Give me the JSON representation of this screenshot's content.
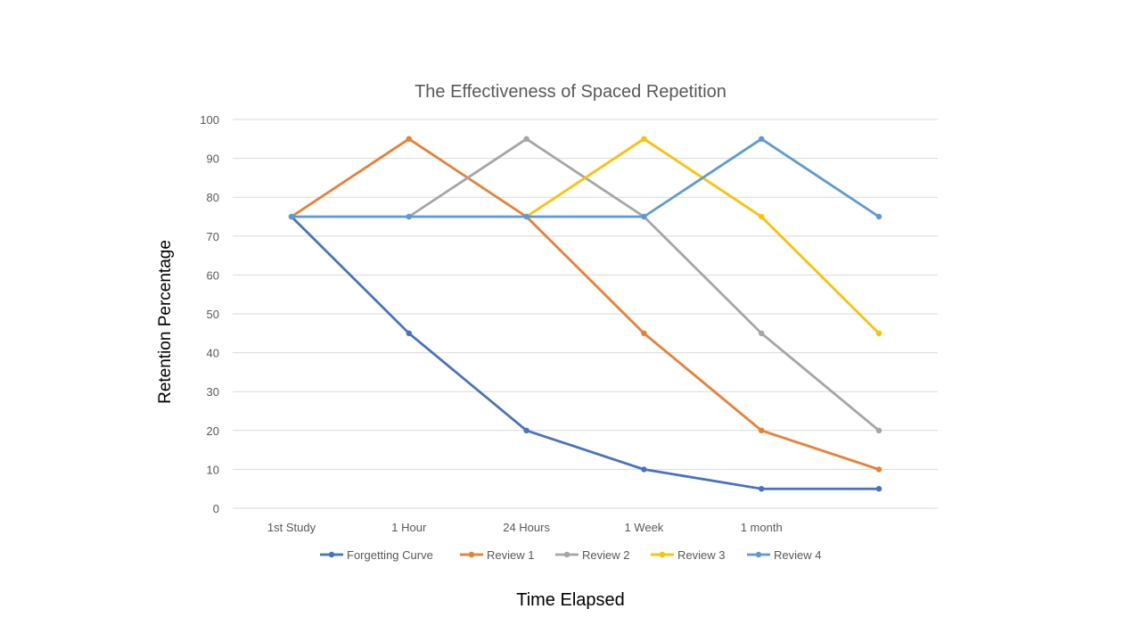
{
  "chart_data": {
    "type": "line",
    "title": "The Effectiveness of Spaced Repetition",
    "xlabel": "Time Elapsed",
    "ylabel": "Retention Percentage",
    "categories": [
      "1st Study",
      "1 Hour",
      "24 Hours",
      "1 Week",
      "1 month",
      ""
    ],
    "ylim": [
      0,
      100
    ],
    "yticks": [
      0,
      10,
      20,
      30,
      40,
      50,
      60,
      70,
      80,
      90,
      100
    ],
    "grid": true,
    "legend_position": "bottom",
    "series": [
      {
        "name": "Forgetting Curve",
        "color": "#4472C4",
        "values": [
          75,
          45,
          20,
          10,
          5,
          5
        ]
      },
      {
        "name": "Review 1",
        "color": "#ED7D31",
        "values": [
          75,
          95,
          75,
          45,
          20,
          10
        ]
      },
      {
        "name": "Review 2",
        "color": "#A5A5A5",
        "values": [
          null,
          75,
          95,
          75,
          45,
          20
        ]
      },
      {
        "name": "Review 3",
        "color": "#FFC000",
        "values": [
          null,
          null,
          75,
          95,
          75,
          45
        ]
      },
      {
        "name": "Review 4",
        "color": "#5B9BD5",
        "values": [
          75,
          75,
          75,
          75,
          95,
          75
        ]
      }
    ]
  }
}
